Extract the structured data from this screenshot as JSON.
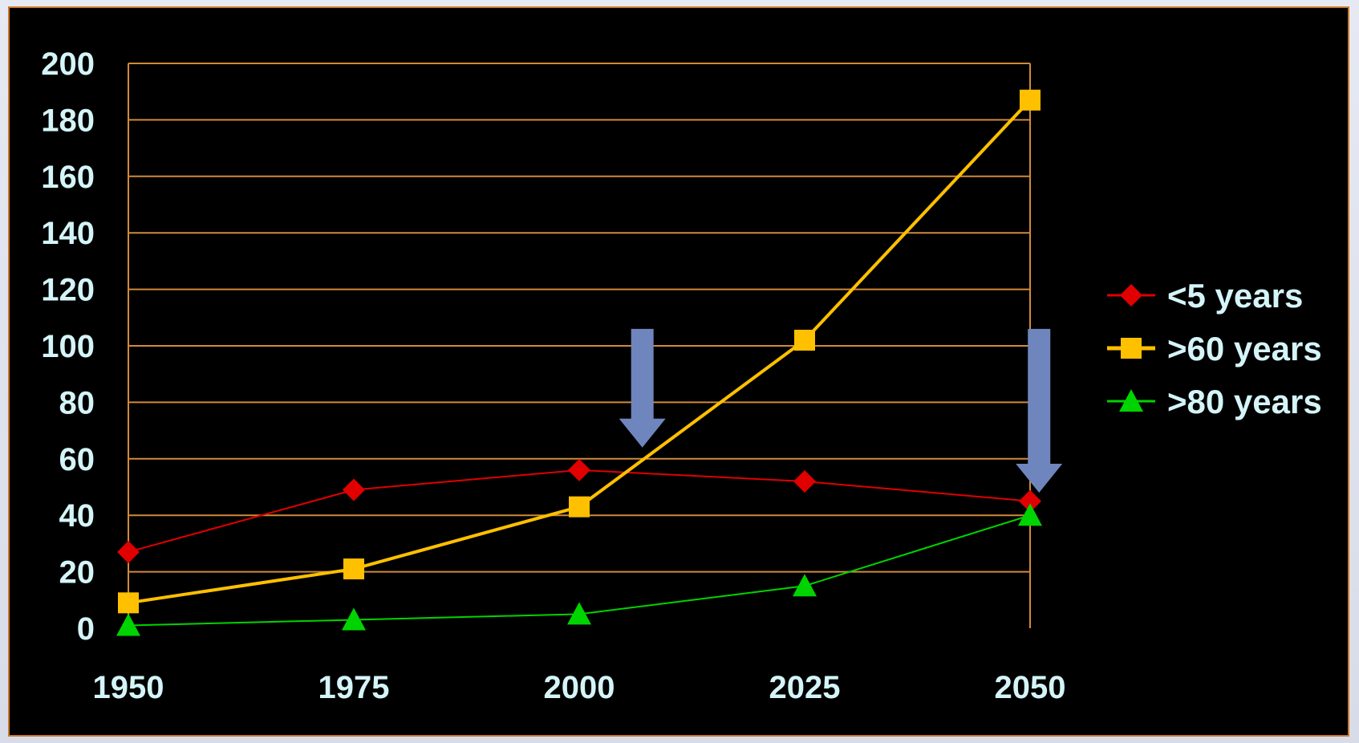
{
  "chart_data": {
    "type": "line",
    "title": "",
    "xlabel": "",
    "ylabel": "",
    "x": [
      1950,
      1975,
      2000,
      2025,
      2050
    ],
    "x_tick_labels": [
      "1950",
      "1975",
      "2000",
      "2025",
      "2050"
    ],
    "y_tick_labels": [
      "0",
      "20",
      "40",
      "60",
      "80",
      "100",
      "120",
      "140",
      "160",
      "180",
      "200"
    ],
    "ylim": [
      0,
      200
    ],
    "grid": true,
    "legend_position": "right",
    "series": [
      {
        "name": "<5 years",
        "values": [
          27,
          49,
          56,
          52,
          45
        ],
        "color": "#e00000",
        "marker": "diamond"
      },
      {
        "name": ">60 years",
        "values": [
          9,
          21,
          43,
          102,
          187
        ],
        "color": "#ffc000",
        "marker": "square"
      },
      {
        "name": ">80 years",
        "values": [
          1,
          3,
          5,
          15,
          40
        ],
        "color": "#00d400",
        "marker": "triangle"
      }
    ],
    "annotations": [
      {
        "type": "down-arrow",
        "x": 2007,
        "y_from": 106,
        "y_to": 64,
        "color": "#6f85bd"
      },
      {
        "type": "down-arrow",
        "x": 2051,
        "y_from": 106,
        "y_to": 48,
        "color": "#6f85bd"
      }
    ],
    "colors": {
      "background": "#000000",
      "gridline": "#d08a3a",
      "text": "#d4f4f8",
      "frame": "#c8782a"
    }
  }
}
